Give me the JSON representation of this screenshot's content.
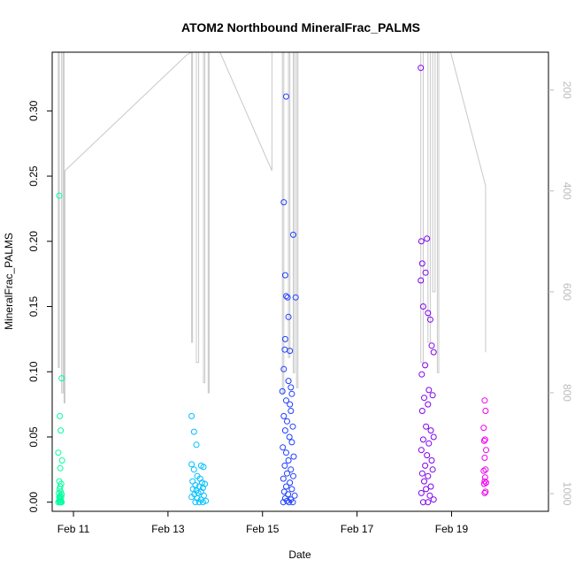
{
  "chart_data": {
    "type": "scatter",
    "title": "ATOM2 Northbound MineralFrac_PALMS",
    "xlabel": "Date",
    "ylabel": "MineralFrac_PALMS",
    "x_ticks": [
      "Feb 11",
      "Feb 13",
      "Feb 15",
      "Feb 17",
      "Feb 19"
    ],
    "y_ticks": [
      "0.00",
      "0.05",
      "0.10",
      "0.15",
      "0.20",
      "0.25",
      "0.30"
    ],
    "y2_ticks": [
      "200",
      "400",
      "600",
      "800",
      "1000"
    ],
    "xlim_days_feb": [
      10.55,
      21.05
    ],
    "ylim": [
      -0.007,
      0.345
    ],
    "y2lim": [
      1035,
      125
    ],
    "grid": false,
    "legend": "none",
    "colors": {
      "flight1": "#00FF9F",
      "flight2": "#00BFFF",
      "flight3": "#1F3FFF",
      "flight4": "#7F00EF",
      "flight5": "#EF00EF",
      "altitude_line": "#C8C8C8",
      "axis": "#000000",
      "right_axis": "#BBBBBB"
    },
    "series": [
      {
        "x_days_feb": [
          10.7,
          10.75,
          10.71,
          10.73,
          10.68,
          10.76,
          10.72,
          10.7,
          10.74,
          10.72,
          10.71,
          10.73,
          10.69,
          10.75,
          10.72,
          10.7,
          10.74,
          10.71,
          10.73,
          10.72,
          10.7,
          10.68,
          10.74,
          10.73,
          10.71,
          10.75,
          10.72
        ],
        "y": [
          0.235,
          0.095,
          0.066,
          0.055,
          0.038,
          0.032,
          0.026,
          0.016,
          0.014,
          0.012,
          0.01,
          0.008,
          0.007,
          0.006,
          0.005,
          0.004,
          0.004,
          0.003,
          0.002,
          0.002,
          0.001,
          0.0,
          0.0,
          0.0,
          0.0,
          0.0,
          0.0
        ]
      },
      {
        "x_days_feb": [
          13.5,
          13.55,
          13.6,
          13.5,
          13.7,
          13.75,
          13.55,
          13.62,
          13.68,
          13.52,
          13.72,
          13.78,
          13.58,
          13.66,
          13.74,
          13.53,
          13.6,
          13.7,
          13.64,
          13.56,
          13.76,
          13.5,
          13.62,
          13.7,
          13.8,
          13.58,
          13.66,
          13.74
        ],
        "y": [
          0.066,
          0.054,
          0.044,
          0.029,
          0.028,
          0.027,
          0.025,
          0.02,
          0.018,
          0.016,
          0.015,
          0.014,
          0.013,
          0.012,
          0.011,
          0.01,
          0.009,
          0.008,
          0.007,
          0.006,
          0.005,
          0.004,
          0.003,
          0.002,
          0.001,
          0.0,
          0.0,
          0.0
        ]
      },
      {
        "x_days_feb": [
          15.5,
          15.45,
          15.65,
          15.48,
          15.5,
          15.53,
          15.7,
          15.55,
          15.48,
          15.47,
          15.58,
          15.45,
          15.55,
          15.6,
          15.42,
          15.62,
          15.5,
          15.58,
          15.6,
          15.45,
          15.52,
          15.64,
          15.48,
          15.57,
          15.62,
          15.43,
          15.5,
          15.66,
          15.55,
          15.47,
          15.6,
          15.52,
          15.65,
          15.44,
          15.58,
          15.5,
          15.62,
          15.46,
          15.54,
          15.68,
          15.48,
          15.6,
          15.52,
          15.44,
          15.56,
          15.64
        ],
        "y": [
          0.311,
          0.23,
          0.205,
          0.174,
          0.158,
          0.157,
          0.157,
          0.142,
          0.125,
          0.117,
          0.116,
          0.102,
          0.093,
          0.088,
          0.085,
          0.083,
          0.078,
          0.075,
          0.07,
          0.066,
          0.062,
          0.058,
          0.055,
          0.05,
          0.046,
          0.042,
          0.038,
          0.035,
          0.032,
          0.028,
          0.025,
          0.022,
          0.02,
          0.018,
          0.015,
          0.012,
          0.01,
          0.008,
          0.006,
          0.005,
          0.003,
          0.002,
          0.001,
          0.0,
          0.0,
          0.0
        ]
      },
      {
        "x_days_feb": [
          18.35,
          18.48,
          18.36,
          18.38,
          18.45,
          18.35,
          18.4,
          18.5,
          18.55,
          18.58,
          18.62,
          18.44,
          18.37,
          18.52,
          18.6,
          18.42,
          18.5,
          18.38,
          18.46,
          18.56,
          18.62,
          18.4,
          18.52,
          18.36,
          18.48,
          18.58,
          18.44,
          18.6,
          18.38,
          18.5,
          18.42,
          18.56,
          18.46,
          18.36,
          18.54,
          18.62,
          18.4,
          18.5
        ],
        "y": [
          0.333,
          0.202,
          0.2,
          0.183,
          0.176,
          0.17,
          0.15,
          0.145,
          0.14,
          0.12,
          0.115,
          0.105,
          0.098,
          0.086,
          0.082,
          0.08,
          0.075,
          0.07,
          0.058,
          0.055,
          0.05,
          0.048,
          0.045,
          0.04,
          0.036,
          0.032,
          0.028,
          0.025,
          0.022,
          0.02,
          0.016,
          0.012,
          0.01,
          0.007,
          0.005,
          0.002,
          0.0,
          0.0
        ]
      },
      {
        "x_days_feb": [
          19.7,
          19.72,
          19.68,
          19.71,
          19.69,
          19.73,
          19.7,
          19.72,
          19.68,
          19.71,
          19.7,
          19.73,
          19.69,
          19.72,
          19.7
        ],
        "y": [
          0.078,
          0.07,
          0.057,
          0.048,
          0.047,
          0.04,
          0.034,
          0.025,
          0.024,
          0.019,
          0.016,
          0.015,
          0.014,
          0.008,
          0.007
        ]
      }
    ],
    "altitude_polyline": [
      {
        "x": 10.68,
        "y": 125
      },
      {
        "x": 10.68,
        "y": 750
      },
      {
        "x": 10.7,
        "y": 750
      },
      {
        "x": 10.7,
        "y": 125
      },
      {
        "x": 10.75,
        "y": 125
      },
      {
        "x": 10.75,
        "y": 800
      },
      {
        "x": 10.78,
        "y": 800
      },
      {
        "x": 10.78,
        "y": 125
      },
      {
        "x": 10.8,
        "y": 125
      },
      {
        "x": 10.8,
        "y": 820
      },
      {
        "x": 10.82,
        "y": 820
      },
      {
        "x": 10.82,
        "y": 360
      },
      {
        "x": 13.4,
        "y": 130
      },
      {
        "x": 13.5,
        "y": 125
      },
      {
        "x": 13.5,
        "y": 700
      },
      {
        "x": 13.52,
        "y": 700
      },
      {
        "x": 13.52,
        "y": 125
      },
      {
        "x": 13.6,
        "y": 125
      },
      {
        "x": 13.6,
        "y": 740
      },
      {
        "x": 13.65,
        "y": 740
      },
      {
        "x": 13.65,
        "y": 125
      },
      {
        "x": 13.75,
        "y": 125
      },
      {
        "x": 13.75,
        "y": 780
      },
      {
        "x": 13.78,
        "y": 780
      },
      {
        "x": 13.78,
        "y": 125
      },
      {
        "x": 13.85,
        "y": 125
      },
      {
        "x": 13.85,
        "y": 800
      },
      {
        "x": 13.87,
        "y": 800
      },
      {
        "x": 13.87,
        "y": 125
      },
      {
        "x": 14.1,
        "y": 125
      },
      {
        "x": 15.2,
        "y": 360
      },
      {
        "x": 15.2,
        "y": 125
      },
      {
        "x": 15.42,
        "y": 125
      },
      {
        "x": 15.42,
        "y": 800
      },
      {
        "x": 15.45,
        "y": 800
      },
      {
        "x": 15.45,
        "y": 125
      },
      {
        "x": 15.55,
        "y": 125
      },
      {
        "x": 15.55,
        "y": 730
      },
      {
        "x": 15.58,
        "y": 730
      },
      {
        "x": 15.58,
        "y": 125
      },
      {
        "x": 15.65,
        "y": 125
      },
      {
        "x": 15.65,
        "y": 760
      },
      {
        "x": 15.68,
        "y": 760
      },
      {
        "x": 15.68,
        "y": 125
      },
      {
        "x": 15.72,
        "y": 125
      },
      {
        "x": 15.72,
        "y": 790
      },
      {
        "x": 15.75,
        "y": 790
      },
      {
        "x": 15.75,
        "y": 125
      },
      {
        "x": 18.35,
        "y": 125
      },
      {
        "x": 18.35,
        "y": 740
      },
      {
        "x": 18.4,
        "y": 740
      },
      {
        "x": 18.4,
        "y": 125
      },
      {
        "x": 18.5,
        "y": 125
      },
      {
        "x": 18.5,
        "y": 700
      },
      {
        "x": 18.55,
        "y": 700
      },
      {
        "x": 18.55,
        "y": 125
      },
      {
        "x": 18.6,
        "y": 125
      },
      {
        "x": 18.6,
        "y": 600
      },
      {
        "x": 18.65,
        "y": 600
      },
      {
        "x": 18.65,
        "y": 125
      },
      {
        "x": 18.7,
        "y": 125
      },
      {
        "x": 18.7,
        "y": 760
      },
      {
        "x": 18.73,
        "y": 760
      },
      {
        "x": 18.73,
        "y": 125
      },
      {
        "x": 18.98,
        "y": 125
      },
      {
        "x": 19.72,
        "y": 390
      },
      {
        "x": 19.72,
        "y": 720
      }
    ]
  }
}
